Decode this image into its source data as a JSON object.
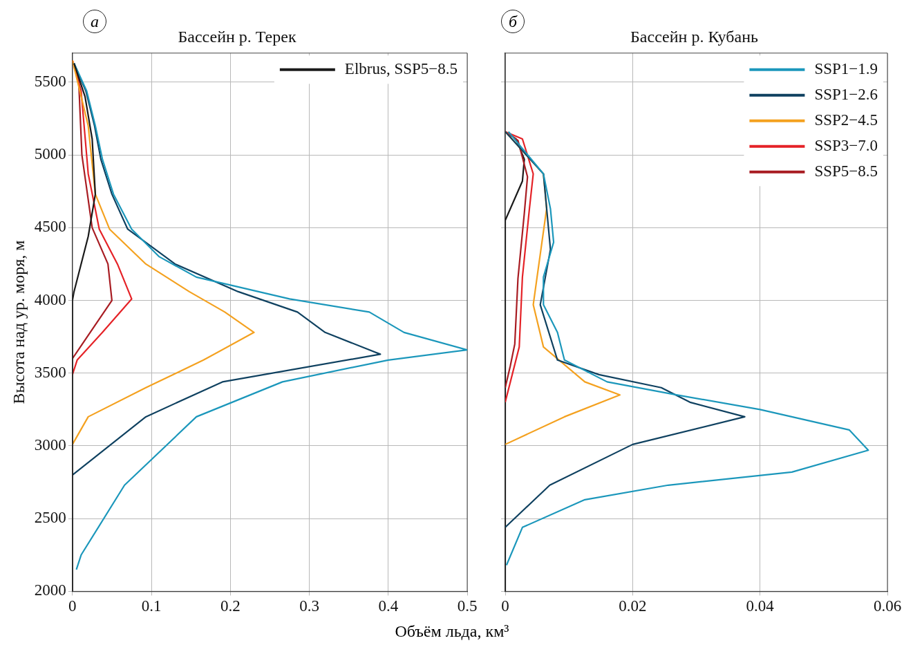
{
  "chart_data": [
    {
      "type": "line",
      "title": "Бассейн р. Терек",
      "xlabel": "Объём льда, км³",
      "ylabel": "Высота над ур. моря, м",
      "annotations": [
        "а"
      ],
      "xlim": [
        0,
        0.5
      ],
      "xticks": [
        0,
        0.1,
        0.2,
        0.3,
        0.4,
        0.5
      ],
      "ylim": [
        2000,
        5700
      ],
      "yticks": [
        2000,
        2500,
        3000,
        3500,
        4000,
        4500,
        5000,
        5500
      ],
      "grid": true,
      "legend": "top right",
      "series": [
        {
          "name": "Elbrus, SSP5−8.5",
          "color": "#1a1a1a",
          "x": [
            0,
            0,
            0.002,
            0.011,
            0.02,
            0.029,
            0.025,
            0.016,
            0.002
          ],
          "values": [
            2000,
            4000,
            4060,
            4250,
            4440,
            4730,
            5110,
            5400,
            5630
          ]
        },
        {
          "color": "#1b97bb",
          "x": [
            0.005,
            0.011,
            0.066,
            0.157,
            0.266,
            0.4,
            0.5,
            0.42,
            0.376,
            0.275,
            0.157,
            0.11,
            0.075,
            0.052,
            0.038,
            0.029,
            0.018,
            0.002
          ],
          "values": [
            2150,
            2250,
            2730,
            3200,
            3440,
            3590,
            3660,
            3780,
            3920,
            4010,
            4160,
            4300,
            4490,
            4730,
            4970,
            5200,
            5440,
            5630
          ]
        },
        {
          "color": "#0f4160",
          "x": [
            0,
            0.093,
            0.19,
            0.39,
            0.32,
            0.285,
            0.21,
            0.13,
            0.07,
            0.05,
            0.036,
            0.028,
            0.017,
            0.002
          ],
          "values": [
            2800,
            3200,
            3440,
            3630,
            3780,
            3920,
            4060,
            4250,
            4490,
            4730,
            4970,
            5200,
            5440,
            5630
          ]
        },
        {
          "color": "#f4a11f",
          "x": [
            0,
            0.02,
            0.093,
            0.166,
            0.23,
            0.193,
            0.148,
            0.093,
            0.047,
            0.029,
            0.02,
            0
          ],
          "values": [
            3010,
            3200,
            3400,
            3590,
            3780,
            3920,
            4060,
            4250,
            4490,
            4730,
            5200,
            5650
          ]
        },
        {
          "color": "#e52227",
          "x": [
            0,
            0.006,
            0.038,
            0.075,
            0.057,
            0.034,
            0.02,
            0.011,
            0
          ],
          "values": [
            3490,
            3590,
            3780,
            4010,
            4250,
            4490,
            4870,
            5440,
            5650
          ]
        },
        {
          "color": "#a81c22",
          "x": [
            0,
            0.025,
            0.05,
            0.045,
            0.025,
            0.012,
            0.008,
            0
          ],
          "values": [
            3600,
            3800,
            4000,
            4250,
            4500,
            5000,
            5500,
            5650
          ]
        }
      ]
    },
    {
      "type": "line",
      "title": "Бассейн р. Кубань",
      "annotations": [
        "б"
      ],
      "xlim": [
        0,
        0.06
      ],
      "xticks": [
        0,
        0.02,
        0.04,
        0.06
      ],
      "ylim": [
        2000,
        5700
      ],
      "yticks": [
        2000,
        2500,
        3000,
        3500,
        4000,
        4500,
        5000,
        5500
      ],
      "grid": true,
      "legend": "top right",
      "tick_labels": "x",
      "series": [
        {
          "name": "SSP1−1.9",
          "color": "#1b97bb",
          "x": [
            0.0002,
            0.0027,
            0.0125,
            0.0256,
            0.045,
            0.057,
            0.054,
            0.04,
            0.027,
            0.016,
            0.0093,
            0.0082,
            0.006,
            0.006,
            0.0076,
            0.0071,
            0.006,
            0.0005
          ],
          "values": [
            2180,
            2440,
            2630,
            2730,
            2820,
            2970,
            3110,
            3250,
            3350,
            3440,
            3590,
            3780,
            3970,
            4160,
            4400,
            4630,
            4870,
            5160
          ]
        },
        {
          "name": "SSP1−2.6",
          "color": "#0f4160",
          "x": [
            0,
            0.007,
            0.02,
            0.0376,
            0.029,
            0.0245,
            0.0147,
            0.0082,
            0.0055,
            0.0071,
            0.006,
            0
          ],
          "values": [
            2440,
            2730,
            3010,
            3200,
            3300,
            3400,
            3490,
            3590,
            3970,
            4350,
            4870,
            5160
          ]
        },
        {
          "name": "SSP2−4.5",
          "color": "#f4a11f",
          "x": [
            0,
            0.0093,
            0.018,
            0.0125,
            0.006,
            0.0044,
            0.005,
            0.0065,
            0.006,
            0
          ],
          "values": [
            3010,
            3200,
            3350,
            3440,
            3680,
            3970,
            4160,
            4630,
            4870,
            5160
          ]
        },
        {
          "name": "SSP3−7.0",
          "color": "#e52227",
          "x": [
            0,
            0.0011,
            0.0022,
            0.0027,
            0.0038,
            0.0044,
            0.0027,
            0
          ],
          "values": [
            3300,
            3490,
            3680,
            4160,
            4630,
            4870,
            5110,
            5160
          ]
        },
        {
          "name": "SSP5−8.5",
          "color": "#a81c22",
          "x": [
            0,
            0.0008,
            0.0015,
            0.002,
            0.003,
            0.0035,
            0.002,
            0
          ],
          "values": [
            3400,
            3550,
            3700,
            4150,
            4600,
            4850,
            5100,
            5160
          ]
        },
        {
          "color": "#1a1a1a",
          "x": [
            0,
            0,
            0.0027,
            0.003,
            0.0017,
            0
          ],
          "values": [
            2000,
            4550,
            4820,
            4970,
            5110,
            5160
          ]
        }
      ]
    }
  ]
}
